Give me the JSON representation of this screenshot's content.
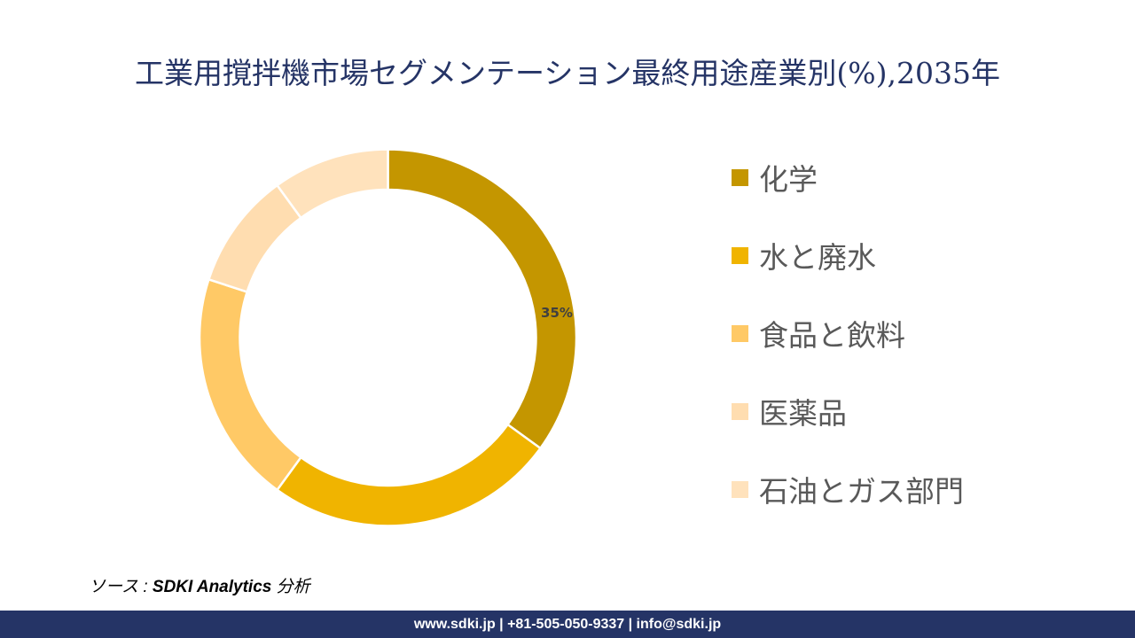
{
  "chart_data": {
    "type": "pie",
    "donut": true,
    "title": "工業用撹拌機市場セグメンテーション最終用途産業別(%),2035年",
    "categories": [
      "化学",
      "水と廃水",
      "食品と飲料",
      "医薬品",
      "石油とガス部門"
    ],
    "values": [
      35,
      25,
      20,
      10,
      10
    ],
    "colors": [
      "#C49600",
      "#F0B400",
      "#FFC966",
      "#FFDDB0",
      "#FFE2BC"
    ],
    "data_labels": [
      "35%",
      "",
      "",
      "",
      ""
    ],
    "legend_position": "right",
    "start_angle": "top, clockwise"
  },
  "source": {
    "prefix": "ソース : ",
    "name": "SDKI Analytics",
    "suffix": " 分析"
  },
  "footer": {
    "contact": "www.sdki.jp | +81-505-050-9337 | info@sdki.jp"
  }
}
